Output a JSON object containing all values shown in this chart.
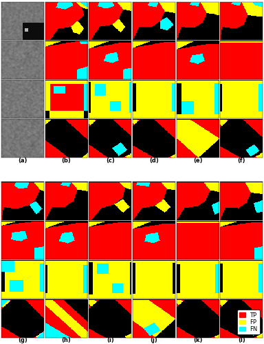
{
  "labels_top": [
    "(a)",
    "(b)",
    "(c)",
    "(d)",
    "(e)",
    "(f)"
  ],
  "labels_bottom": [
    "(g)",
    "(h)",
    "(i)",
    "(j)",
    "(k)",
    "(l)"
  ],
  "legend_items": [
    {
      "label": "TP",
      "color": "#ff0000"
    },
    {
      "label": "FP",
      "color": "#ffff00"
    },
    {
      "label": "FN",
      "color": "#00ffff"
    }
  ],
  "num_rows_per_group": 4,
  "num_cols": 6,
  "bg_color": "#ffffff",
  "label_fontsize": 6,
  "legend_fontsize": 6
}
